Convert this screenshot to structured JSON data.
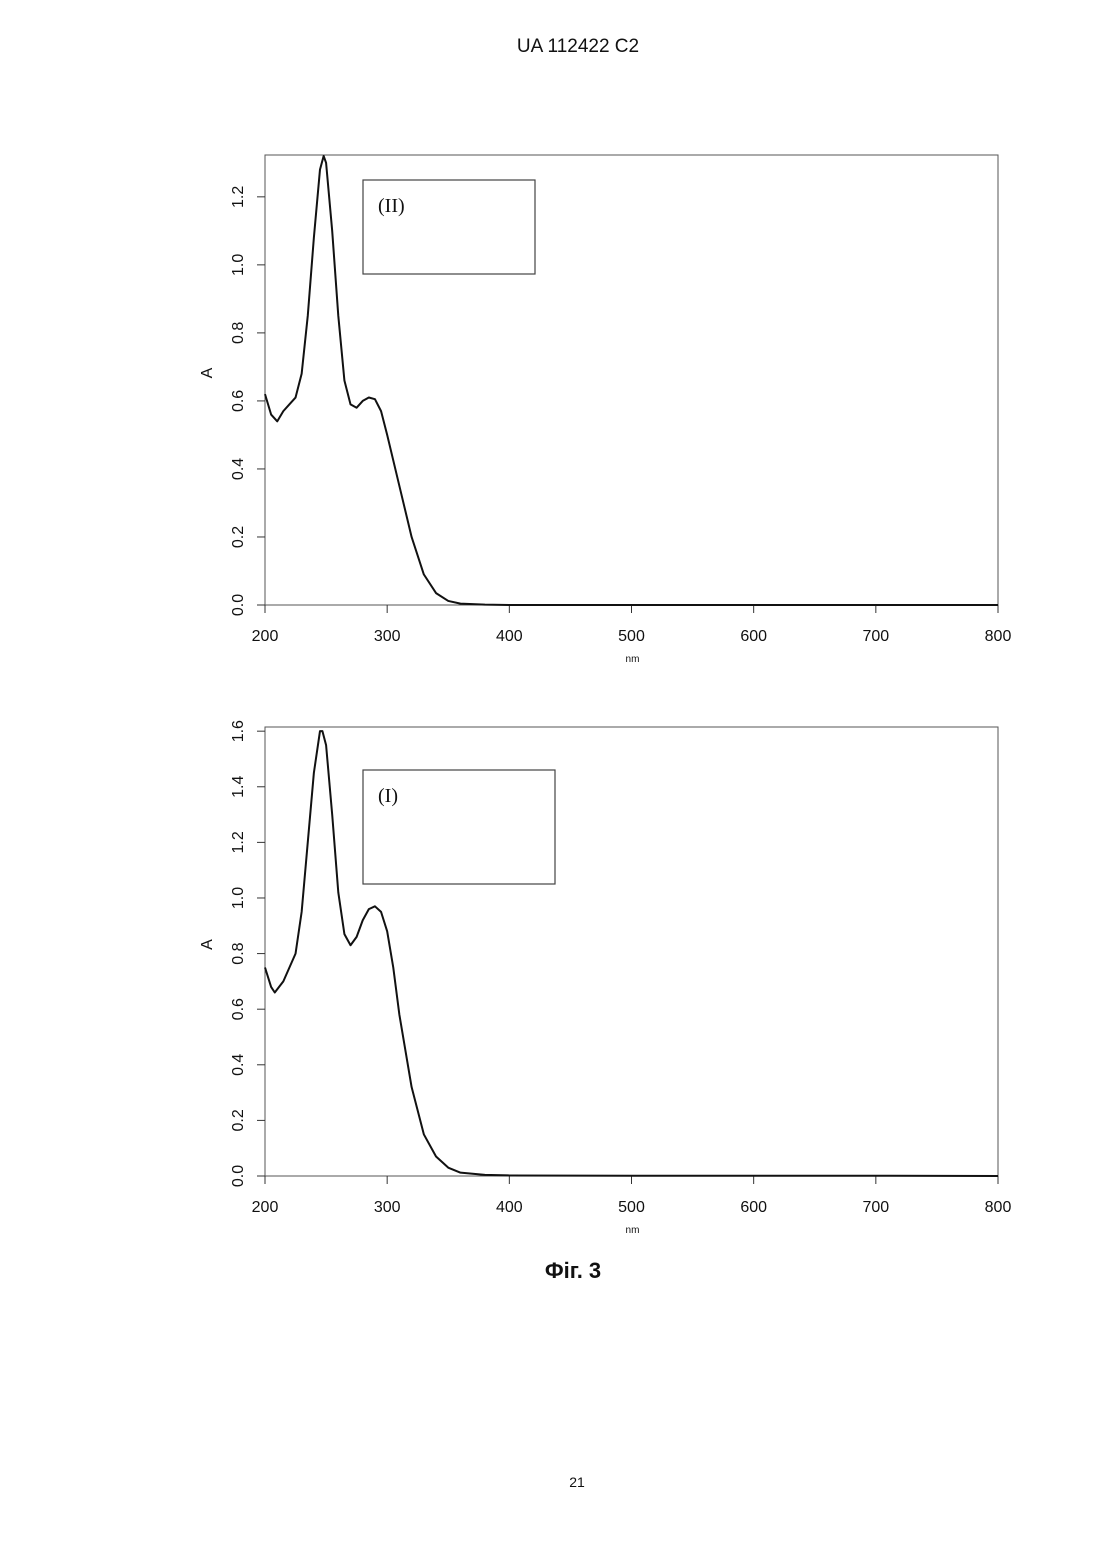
{
  "header": "UA   112422   C2",
  "caption": "Фіг. 3",
  "page_number": "21",
  "chart_data": [
    {
      "type": "line",
      "x_label": "nm",
      "y_label": "A",
      "annotation": "(II)",
      "xlim": [
        200,
        800
      ],
      "ylim": [
        0,
        1.323
      ],
      "xticks": [
        200,
        300,
        400,
        500,
        600,
        700,
        800
      ],
      "yticks": [
        {
          "value": 0,
          "label": "0.0"
        },
        0.2,
        0.4,
        0.6,
        0.8,
        {
          "value": 1,
          "label": "1.0"
        },
        1.2
      ],
      "color": "#111111",
      "x": [
        200,
        205,
        210,
        215,
        220,
        225,
        230,
        235,
        240,
        245,
        248,
        250,
        255,
        260,
        265,
        270,
        275,
        280,
        285,
        290,
        295,
        300,
        310,
        320,
        330,
        340,
        350,
        360,
        380,
        400,
        500,
        600,
        700,
        800
      ],
      "values": [
        0.62,
        0.56,
        0.54,
        0.57,
        0.59,
        0.61,
        0.68,
        0.85,
        1.08,
        1.28,
        1.32,
        1.3,
        1.1,
        0.85,
        0.66,
        0.59,
        0.58,
        0.6,
        0.61,
        0.605,
        0.57,
        0.5,
        0.35,
        0.2,
        0.09,
        0.035,
        0.012,
        0.004,
        0.001,
        0,
        0,
        0,
        0,
        0
      ]
    },
    {
      "type": "line",
      "x_label": "nm",
      "y_label": "A",
      "annotation": "(I)",
      "xlim": [
        200,
        800
      ],
      "ylim": [
        0,
        1.615
      ],
      "xticks": [
        200,
        300,
        400,
        500,
        600,
        700,
        800
      ],
      "yticks": [
        {
          "value": 0,
          "label": "0.0"
        },
        0.2,
        0.4,
        0.6,
        0.8,
        {
          "value": 1,
          "label": "1.0"
        },
        1.2,
        1.4,
        1.6
      ],
      "color": "#111111",
      "x": [
        200,
        205,
        208,
        215,
        220,
        225,
        230,
        235,
        240,
        245,
        247,
        250,
        255,
        260,
        265,
        270,
        275,
        280,
        285,
        290,
        295,
        300,
        305,
        310,
        320,
        330,
        340,
        350,
        360,
        380,
        400,
        500,
        600,
        700,
        800
      ],
      "values": [
        0.75,
        0.68,
        0.66,
        0.7,
        0.75,
        0.8,
        0.95,
        1.2,
        1.45,
        1.6,
        1.6,
        1.55,
        1.3,
        1.02,
        0.87,
        0.83,
        0.86,
        0.92,
        0.96,
        0.97,
        0.95,
        0.88,
        0.75,
        0.58,
        0.32,
        0.15,
        0.07,
        0.03,
        0.012,
        0.004,
        0.002,
        0.001,
        0.001,
        0.001,
        0
      ]
    }
  ]
}
